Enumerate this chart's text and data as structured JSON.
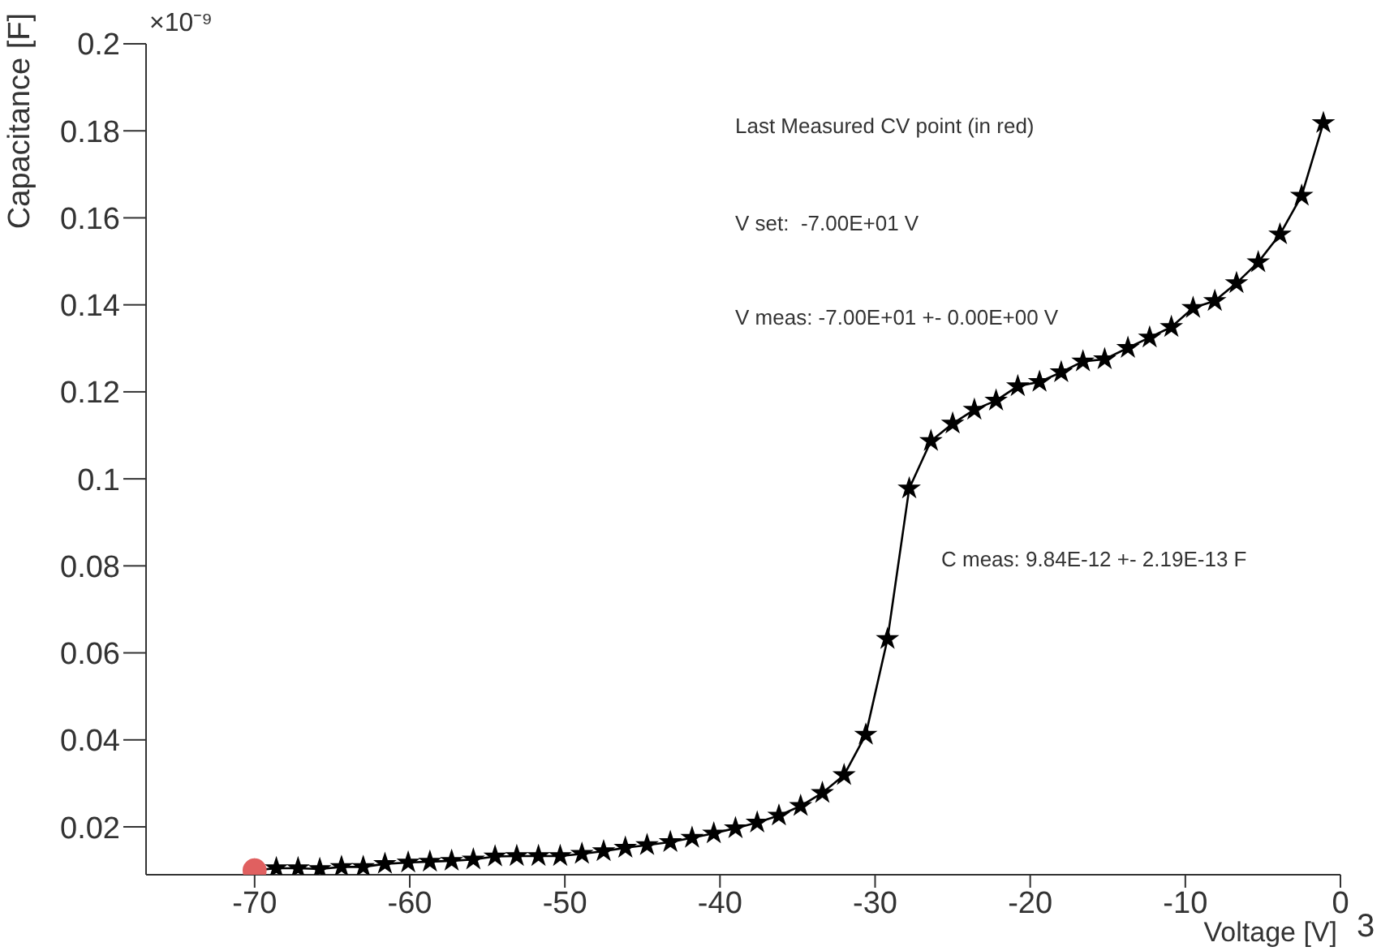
{
  "chart_data": {
    "type": "line",
    "xlabel": "Voltage [V]",
    "ylabel": "Capacitance [F]",
    "xlim": [
      -77,
      0
    ],
    "xticks": [
      -70,
      -60,
      -50,
      -40,
      -30,
      -20,
      -10,
      0
    ],
    "ylim": [
      0.009,
      0.2
    ],
    "yticks": [
      0.02,
      0.04,
      0.06,
      0.08,
      0.1,
      0.12,
      0.14,
      0.16,
      0.18,
      0.2
    ],
    "grid": false,
    "legend": false,
    "marker": "star",
    "line_style": "solid",
    "series": [
      {
        "color": "#000000",
        "x": [
          -70,
          -68.6,
          -67.2,
          -65.8,
          -64.4,
          -63,
          -61.6,
          -60.1,
          -58.7,
          -57.3,
          -55.9,
          -54.5,
          -53.1,
          -51.7,
          -50.3,
          -48.9,
          -47.5,
          -46.1,
          -44.7,
          -43.2,
          -41.8,
          -40.4,
          -39,
          -37.6,
          -36.2,
          -34.8,
          -33.4,
          -32,
          -30.6,
          -29.2,
          -27.8,
          -26.4,
          -25,
          -23.6,
          -22.2,
          -20.8,
          -19.4,
          -18,
          -16.6,
          -15.2,
          -13.7,
          -12.3,
          -10.9,
          -9.5,
          -8.1,
          -6.7,
          -5.3,
          -3.9,
          -2.5,
          -1.1
        ],
        "values": [
          0.01,
          0.0105,
          0.0105,
          0.0103,
          0.0108,
          0.0108,
          0.0115,
          0.0118,
          0.012,
          0.0122,
          0.0125,
          0.0132,
          0.0133,
          0.0133,
          0.0133,
          0.0138,
          0.0144,
          0.0152,
          0.0158,
          0.0165,
          0.0175,
          0.0185,
          0.0197,
          0.021,
          0.0226,
          0.0248,
          0.0278,
          0.0319,
          0.0412,
          0.0632,
          0.0978,
          0.1087,
          0.1127,
          0.1159,
          0.118,
          0.1213,
          0.1223,
          0.1245,
          0.127,
          0.1275,
          0.1301,
          0.1325,
          0.1349,
          0.1393,
          0.1409,
          0.145,
          0.1498,
          0.1562,
          0.1651,
          0.1818
        ]
      },
      {
        "type": "scatter",
        "color": "#e06060",
        "marker": "circle",
        "x": [
          -70
        ],
        "values": [
          0.01
        ]
      }
    ],
    "annotations": [
      "Last Measured CV point (in red)",
      "V set:  -7.00E+01 V",
      "V meas: -7.00E+01 +- 0.00E+00 V",
      "C meas: 9.84E-12 +- 2.19E-13 F",
      "×10⁻⁹",
      "3"
    ]
  }
}
